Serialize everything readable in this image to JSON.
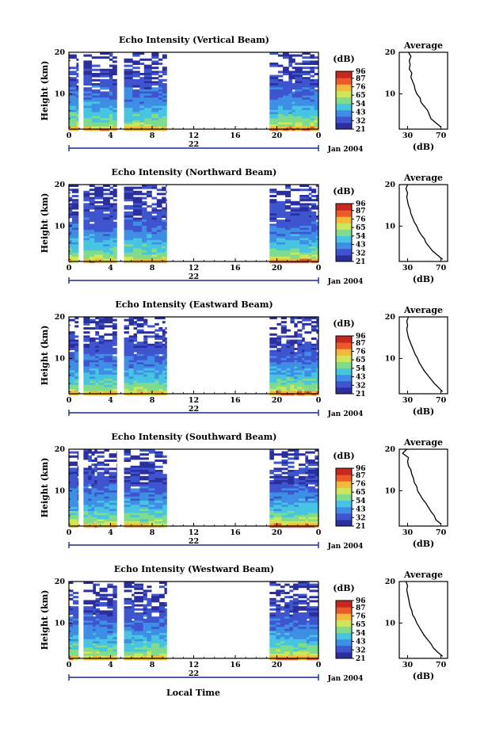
{
  "figure": {
    "xlabel": "Local Time",
    "date_label": "Jan 2004",
    "day_label": "22"
  },
  "colorscale": {
    "unit_label": "(dB)",
    "ticks": [
      96,
      87,
      76,
      65,
      54,
      43,
      32,
      21
    ],
    "colors": [
      "#2b2f9e",
      "#3f54cf",
      "#3f8ee6",
      "#47c4e2",
      "#7fdc8c",
      "#cde65a",
      "#f5b93a",
      "#ec5a2a",
      "#c8281e"
    ]
  },
  "chart_data": [
    {
      "type": "heatmap",
      "title": "Echo Intensity (Vertical Beam)",
      "ylabel": "Height (km)",
      "x_ticks": [
        "0",
        "4",
        "8",
        "12",
        "16",
        "20",
        "0"
      ],
      "y_ticks": [
        "20",
        "10"
      ],
      "xlim": [
        0,
        24
      ],
      "ylim": [
        1.5,
        20
      ],
      "data_segments_hours": [
        [
          0,
          0.9
        ],
        [
          1.4,
          4.6
        ],
        [
          5.3,
          9.4
        ],
        [
          19.3,
          24.0
        ]
      ],
      "colorbar_ticks_dB": [
        96,
        87,
        76,
        65,
        54,
        43,
        32,
        21
      ],
      "colorbar_range_dB": [
        21,
        96
      ],
      "profile": {
        "title": "Average",
        "xlabel": "(dB)",
        "x_ticks": [
          "30",
          "70"
        ],
        "y_ticks": [
          "20",
          "10"
        ],
        "xlim": [
          20,
          78
        ],
        "height_km": [
          2,
          3,
          4,
          5,
          6,
          7,
          8,
          9,
          10,
          11,
          12,
          13,
          14,
          15,
          16,
          17,
          18,
          19,
          20
        ],
        "mean_dB": [
          70,
          64,
          58,
          56,
          54,
          50,
          46,
          45,
          41,
          39,
          38,
          36,
          34,
          35,
          32,
          33,
          32,
          34,
          31
        ]
      }
    },
    {
      "type": "heatmap",
      "title": "Echo Intensity (Northward Beam)",
      "ylabel": "Height (km)",
      "x_ticks": [
        "0",
        "4",
        "8",
        "12",
        "16",
        "20",
        "0"
      ],
      "y_ticks": [
        "20",
        "10"
      ],
      "xlim": [
        0,
        24
      ],
      "ylim": [
        1.5,
        20
      ],
      "data_segments_hours": [
        [
          0,
          0.9
        ],
        [
          1.4,
          4.6
        ],
        [
          5.3,
          9.4
        ],
        [
          19.3,
          24.0
        ]
      ],
      "colorbar_ticks_dB": [
        96,
        87,
        76,
        65,
        54,
        43,
        32,
        21
      ],
      "colorbar_range_dB": [
        21,
        96
      ],
      "profile": {
        "title": "Average",
        "xlabel": "(dB)",
        "x_ticks": [
          "30",
          "70"
        ],
        "y_ticks": [
          "20",
          "10"
        ],
        "xlim": [
          20,
          78
        ],
        "height_km": [
          2,
          3,
          4,
          5,
          6,
          7,
          8,
          9,
          10,
          11,
          12,
          13,
          14,
          15,
          16,
          17,
          18,
          19,
          20
        ],
        "mean_dB": [
          72,
          66,
          60,
          56,
          52,
          50,
          46,
          43,
          41,
          38,
          36,
          34,
          33,
          31,
          30,
          29,
          30,
          28,
          30
        ]
      }
    },
    {
      "type": "heatmap",
      "title": "Echo Intensity (Eastward Beam)",
      "ylabel": "Height (km)",
      "x_ticks": [
        "0",
        "4",
        "8",
        "12",
        "16",
        "20",
        "0"
      ],
      "y_ticks": [
        "20",
        "10"
      ],
      "xlim": [
        0,
        24
      ],
      "ylim": [
        1.5,
        20
      ],
      "data_segments_hours": [
        [
          0,
          0.9
        ],
        [
          1.4,
          4.6
        ],
        [
          5.3,
          9.4
        ],
        [
          19.3,
          24.0
        ]
      ],
      "colorbar_ticks_dB": [
        96,
        87,
        76,
        65,
        54,
        43,
        32,
        21
      ],
      "colorbar_range_dB": [
        21,
        96
      ],
      "profile": {
        "title": "Average",
        "xlabel": "(dB)",
        "x_ticks": [
          "30",
          "70"
        ],
        "y_ticks": [
          "20",
          "10"
        ],
        "xlim": [
          20,
          78
        ],
        "height_km": [
          2,
          3,
          4,
          5,
          6,
          7,
          8,
          9,
          10,
          11,
          12,
          13,
          14,
          15,
          16,
          17,
          18,
          19,
          20
        ],
        "mean_dB": [
          72,
          67,
          62,
          58,
          54,
          50,
          47,
          44,
          42,
          39,
          37,
          35,
          33,
          31,
          30,
          29,
          30,
          29,
          31
        ]
      }
    },
    {
      "type": "heatmap",
      "title": "Echo Intensity (Southward Beam)",
      "ylabel": "Height (km)",
      "x_ticks": [
        "0",
        "4",
        "8",
        "12",
        "16",
        "20",
        "0"
      ],
      "y_ticks": [
        "20",
        "10"
      ],
      "xlim": [
        0,
        24
      ],
      "ylim": [
        1.5,
        20
      ],
      "data_segments_hours": [
        [
          0,
          0.9
        ],
        [
          1.4,
          4.6
        ],
        [
          5.3,
          9.4
        ],
        [
          19.3,
          24.0
        ]
      ],
      "colorbar_ticks_dB": [
        96,
        87,
        76,
        65,
        54,
        43,
        32,
        21
      ],
      "colorbar_range_dB": [
        21,
        96
      ],
      "profile": {
        "title": "Average",
        "xlabel": "(dB)",
        "x_ticks": [
          "30",
          "70"
        ],
        "y_ticks": [
          "20",
          "10"
        ],
        "xlim": [
          20,
          78
        ],
        "height_km": [
          2,
          3,
          4,
          5,
          6,
          7,
          8,
          9,
          10,
          11,
          12,
          13,
          14,
          15,
          16,
          17,
          18,
          19,
          20
        ],
        "mean_dB": [
          70,
          64,
          62,
          58,
          55,
          52,
          48,
          45,
          42,
          41,
          38,
          37,
          35,
          34,
          31,
          30,
          31,
          24,
          29
        ]
      }
    },
    {
      "type": "heatmap",
      "title": "Echo Intensity (Westward Beam)",
      "ylabel": "Height (km)",
      "x_ticks": [
        "0",
        "4",
        "8",
        "12",
        "16",
        "20",
        "0"
      ],
      "y_ticks": [
        "20",
        "10"
      ],
      "xlim": [
        0,
        24
      ],
      "ylim": [
        1.5,
        20
      ],
      "data_segments_hours": [
        [
          0,
          0.9
        ],
        [
          1.4,
          4.6
        ],
        [
          5.3,
          9.4
        ],
        [
          19.3,
          24.0
        ]
      ],
      "colorbar_ticks_dB": [
        96,
        87,
        76,
        65,
        54,
        43,
        32,
        21
      ],
      "colorbar_range_dB": [
        21,
        96
      ],
      "profile": {
        "title": "Average",
        "xlabel": "(dB)",
        "x_ticks": [
          "30",
          "70"
        ],
        "y_ticks": [
          "20",
          "10"
        ],
        "xlim": [
          20,
          78
        ],
        "height_km": [
          2,
          3,
          4,
          5,
          6,
          7,
          8,
          9,
          10,
          11,
          12,
          13,
          14,
          15,
          16,
          17,
          18,
          19,
          20
        ],
        "mean_dB": [
          72,
          66,
          61,
          58,
          54,
          50,
          47,
          44,
          41,
          39,
          36,
          35,
          33,
          32,
          31,
          30,
          29,
          30,
          28
        ]
      }
    }
  ]
}
